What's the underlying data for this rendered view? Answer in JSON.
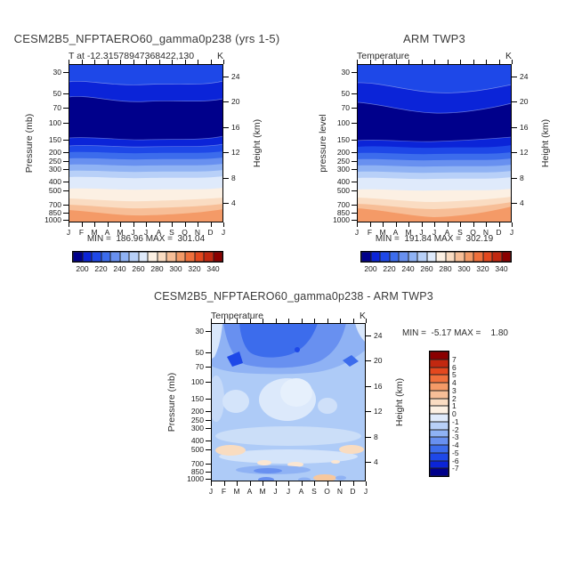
{
  "colors": {
    "text": "#2b2b2b",
    "frame": "#000000",
    "palette": [
      "#00008B",
      "#0B24D8",
      "#1E48E8",
      "#3C6CEC",
      "#6890F0",
      "#8FB2F4",
      "#B8D0F8",
      "#DFEAFB",
      "#FCF0E3",
      "#FADCC2",
      "#F7BE97",
      "#F49A67",
      "#F0703C",
      "#E4481E",
      "#C22810",
      "#8B0000"
    ],
    "diff_palette": [
      "#8B0000",
      "#C22810",
      "#E4481E",
      "#F0703C",
      "#F49A67",
      "#F7BE97",
      "#FADCC2",
      "#FCF0E3",
      "#DFEAFB",
      "#B8D0F8",
      "#8FB2F4",
      "#6890F0",
      "#3C6CEC",
      "#1E48E8",
      "#0B24D8",
      "#00008B"
    ]
  },
  "months": [
    "J",
    "F",
    "M",
    "A",
    "M",
    "J",
    "J",
    "A",
    "S",
    "O",
    "N",
    "D",
    "J"
  ],
  "pressure_ticks": [
    "30",
    "50",
    "70",
    "100",
    "150",
    "200",
    "250",
    "300",
    "400",
    "500",
    "700",
    "850",
    "1000"
  ],
  "height_ticks": [
    "24",
    "20",
    "16",
    "12",
    "8",
    "4"
  ],
  "temp_colorbar_labels": [
    "200",
    "220",
    "240",
    "260",
    "280",
    "300",
    "320",
    "340"
  ],
  "diff_colorbar_labels": [
    "7",
    "6",
    "5",
    "4",
    "3",
    "2",
    "1",
    "0",
    "-1",
    "-2",
    "-3",
    "-4",
    "-5",
    "-6",
    "-7"
  ],
  "panels": {
    "model": {
      "title": "CESM2B5_NFPTAERO60_gamma0p238 (yrs 1-5)",
      "sub_left": "T at -12.31578947368422,130",
      "sub_right": "K",
      "y_label": "Pressure (mb)",
      "height_label": "Height (km)",
      "stats": "MIN =  186.96 MAX =  301.04"
    },
    "obs": {
      "title": "ARM TWP3",
      "sub_left": "Temperature",
      "sub_right": "K",
      "y_label": "pressure level",
      "height_label": "Height (km)",
      "stats": "MIN =  191.84 MAX =  302.19"
    },
    "diff": {
      "title": "CESM2B5_NFPTAERO60_gamma0p238 - ARM TWP3",
      "sub_left": "Temperature",
      "sub_right": "K",
      "y_label": "Pressure (mb)",
      "height_label": "Height (km)",
      "stats": "MIN =  -5.17 MAX =    1.80"
    }
  },
  "chart_data": [
    {
      "type": "contour",
      "panel": "model",
      "title": "CESM2B5_NFPTAERO60_gamma0p238 (yrs 1-5)",
      "subtitle": "T at -12.31578947368422,130",
      "units": "K",
      "x_categories": [
        "J",
        "F",
        "M",
        "A",
        "M",
        "J",
        "J",
        "A",
        "S",
        "O",
        "N",
        "D",
        "J"
      ],
      "y_pressure_mb": [
        30,
        50,
        70,
        100,
        150,
        200,
        250,
        300,
        400,
        500,
        700,
        850,
        1000
      ],
      "y_scale": "log",
      "right_axis_height_km": [
        24,
        20,
        16,
        12,
        8,
        4
      ],
      "min": 186.96,
      "max": 301.04,
      "contour_levels": {
        "start": 190,
        "end": 350,
        "step": 10
      },
      "approx_mean_profile_K": [
        212,
        200,
        193,
        192,
        208,
        222,
        233,
        244,
        258,
        268,
        284,
        292,
        300
      ],
      "legend_position": "bottom"
    },
    {
      "type": "contour",
      "panel": "obs",
      "title": "ARM TWP3",
      "subtitle": "Temperature",
      "units": "K",
      "x_categories": [
        "J",
        "F",
        "M",
        "A",
        "M",
        "J",
        "J",
        "A",
        "S",
        "O",
        "N",
        "D",
        "J"
      ],
      "y_pressure_mb": [
        30,
        50,
        70,
        100,
        150,
        200,
        250,
        300,
        400,
        500,
        700,
        850,
        1000
      ],
      "y_scale": "log",
      "right_axis_height_km": [
        24,
        20,
        16,
        12,
        8,
        4
      ],
      "min": 191.84,
      "max": 302.19,
      "contour_levels": {
        "start": 190,
        "end": 350,
        "step": 10
      },
      "approx_mean_profile_K": [
        214,
        203,
        196,
        194,
        209,
        223,
        235,
        246,
        260,
        270,
        285,
        293,
        302
      ],
      "legend_position": "bottom"
    },
    {
      "type": "contour",
      "panel": "diff",
      "title": "CESM2B5_NFPTAERO60_gamma0p238 - ARM TWP3",
      "subtitle": "Temperature",
      "units": "K",
      "x_categories": [
        "J",
        "F",
        "M",
        "A",
        "M",
        "J",
        "J",
        "A",
        "S",
        "O",
        "N",
        "D",
        "J"
      ],
      "y_pressure_mb": [
        30,
        50,
        70,
        100,
        150,
        200,
        250,
        300,
        400,
        500,
        700,
        850,
        1000
      ],
      "y_scale": "log",
      "right_axis_height_km": [
        24,
        20,
        16,
        12,
        8,
        4
      ],
      "min": -5.17,
      "max": 1.8,
      "contour_levels": {
        "start": -8,
        "end": 8,
        "step": 1
      },
      "approx_mean_profile_K": [
        -2.5,
        -3.5,
        -4,
        -3,
        -1.5,
        -1,
        -1,
        -1.5,
        -1,
        -0.5,
        -1,
        -2,
        -1
      ],
      "legend_position": "right"
    }
  ]
}
